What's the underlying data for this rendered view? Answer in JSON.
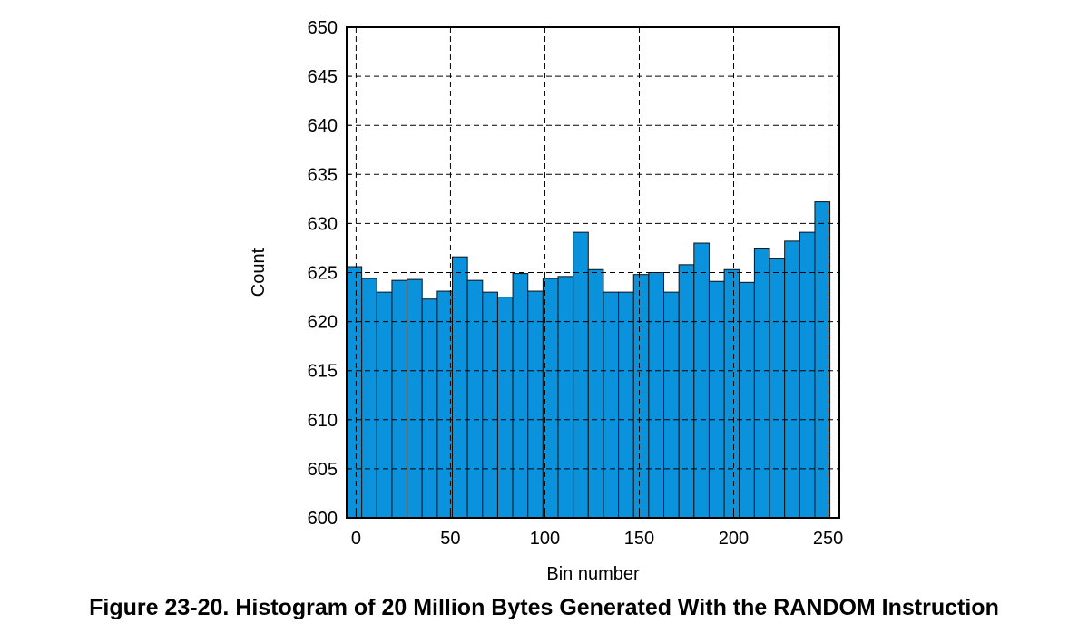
{
  "caption": "Figure 23-20. Histogram of 20 Million Bytes Generated With the RANDOM Instruction",
  "colors": {
    "bar_fill": "#0a93dc",
    "bar_stroke": "#111111",
    "grid": "#000000",
    "axis": "#000000"
  },
  "chart_data": {
    "type": "bar",
    "title": "",
    "xlabel": "Bin number",
    "ylabel": "Count",
    "xlim": [
      -5,
      256
    ],
    "ylim": [
      600,
      650
    ],
    "xticks": [
      0,
      50,
      100,
      150,
      200,
      250
    ],
    "yticks": [
      600,
      605,
      610,
      615,
      620,
      625,
      630,
      635,
      640,
      645,
      650
    ],
    "grid": true,
    "bin_width": 8,
    "bin_starts": [
      -5,
      3,
      11,
      19,
      27,
      35,
      43,
      51,
      59,
      67,
      75,
      83,
      91,
      99,
      107,
      115,
      123,
      131,
      139,
      147,
      155,
      163,
      171,
      179,
      187,
      195,
      203,
      211,
      219,
      227,
      235,
      243,
      251
    ],
    "values": [
      625.6,
      624.4,
      623.0,
      624.2,
      624.3,
      622.3,
      623.1,
      626.6,
      624.2,
      623.0,
      622.5,
      624.9,
      623.1,
      624.4,
      624.6,
      629.1,
      625.3,
      623.0,
      623.0,
      624.8,
      625.0,
      623.0,
      625.8,
      628.0,
      624.1,
      625.3,
      624.0,
      627.4,
      626.4,
      628.2,
      629.1,
      632.2
    ]
  }
}
